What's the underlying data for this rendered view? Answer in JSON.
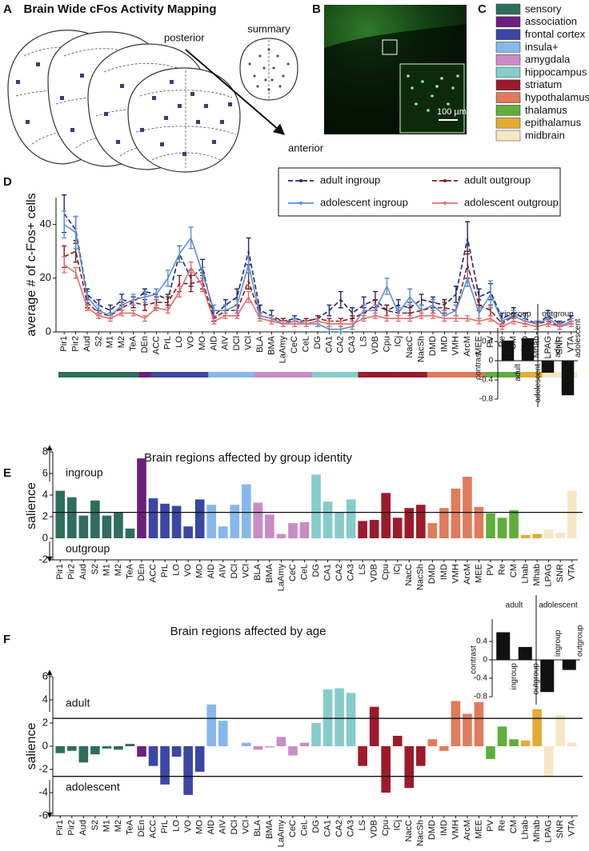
{
  "figure": {
    "panel_labels": [
      "A",
      "B",
      "C",
      "D",
      "E",
      "F"
    ],
    "title": "Brain Wide cFos Activity Mapping",
    "posterior": "posterior",
    "anterior": "anterior",
    "summary": "summary",
    "scale_bar": "100 µm",
    "legend": [
      {
        "name": "sensory",
        "color": "#2f6e5c"
      },
      {
        "name": "association",
        "color": "#6b1f7c"
      },
      {
        "name": "frontal cortex",
        "color": "#3b47a3"
      },
      {
        "name": "insula+",
        "color": "#86b8ec"
      },
      {
        "name": "amygdala",
        "color": "#c98cc6"
      },
      {
        "name": "hippocampus",
        "color": "#86cccb"
      },
      {
        "name": "striatum",
        "color": "#9b1b2b"
      },
      {
        "name": "hypothalamus",
        "color": "#e07b5c"
      },
      {
        "name": "thalamus",
        "color": "#5fae3c"
      },
      {
        "name": "epithalamus",
        "color": "#e3ac36"
      },
      {
        "name": "midbrain",
        "color": "#f6e7c4"
      }
    ]
  },
  "chart_data": [
    {
      "type": "line",
      "ylabel": "average # of c-Fos+ cells",
      "categories": [
        "Pir1",
        "Pir2",
        "Aud",
        "S2",
        "M1",
        "M2",
        "TeA",
        "DEn",
        "ACC",
        "PrL",
        "LO",
        "VO",
        "MO",
        "AID",
        "AIV",
        "DCl",
        "VCl",
        "BLA",
        "BMA",
        "LaAmy",
        "CeC",
        "CeL",
        "DG",
        "CA1",
        "CA2",
        "CA3",
        "LS",
        "VDB",
        "Cpu",
        "ICj",
        "NacC",
        "NacSh",
        "DMD",
        "IMD",
        "VMH",
        "ArcM",
        "MEE",
        "PV",
        "Re",
        "CM",
        "Lhab",
        "Mhab",
        "LPAG",
        "SNR",
        "VTA"
      ],
      "ylim": [
        0,
        50
      ],
      "yticks": [
        0,
        20,
        40
      ],
      "series": [
        {
          "name": "adult ingroup",
          "color": "#1f2a6e",
          "dashed": true,
          "values": [
            44,
            38,
            14,
            10,
            8,
            12,
            11,
            15,
            14,
            12,
            29,
            20,
            24,
            6,
            10,
            13,
            30,
            8,
            6,
            4,
            5,
            4,
            5,
            8,
            12,
            7,
            10,
            12,
            8,
            10,
            9,
            12,
            11,
            10,
            14,
            35,
            13,
            15,
            5,
            7,
            5,
            3,
            6,
            3,
            5
          ],
          "errors": [
            7,
            5,
            2,
            2,
            2,
            2,
            2,
            1,
            2,
            2,
            3,
            3,
            3,
            2,
            2,
            3,
            5,
            2,
            2,
            1,
            1,
            1,
            1,
            2,
            3,
            2,
            3,
            3,
            2,
            2,
            2,
            2,
            2,
            2,
            3,
            6,
            3,
            3,
            2,
            2,
            2,
            1,
            2,
            1,
            1
          ]
        },
        {
          "name": "adult outgroup",
          "color": "#8b1a1a",
          "dashed": true,
          "values": [
            28,
            30,
            11,
            7,
            6,
            9,
            11,
            10,
            11,
            11,
            18,
            18,
            19,
            5,
            8,
            8,
            19,
            6,
            5,
            4,
            4,
            4,
            5,
            4,
            4,
            5,
            7,
            10,
            8,
            7,
            7,
            8,
            9,
            9,
            8,
            25,
            10,
            8,
            3,
            6,
            4,
            3,
            4,
            2,
            4
          ],
          "errors": [
            4,
            4,
            2,
            1,
            1,
            2,
            2,
            2,
            2,
            2,
            3,
            3,
            3,
            1,
            2,
            2,
            3,
            1,
            1,
            1,
            1,
            1,
            1,
            1,
            1,
            1,
            2,
            2,
            2,
            2,
            2,
            2,
            2,
            2,
            2,
            5,
            2,
            2,
            1,
            1,
            1,
            1,
            1,
            1,
            1
          ]
        },
        {
          "name": "adolescent ingroup",
          "color": "#5b8fd6",
          "dashed": false,
          "values": [
            40,
            37,
            13,
            8,
            6,
            10,
            12,
            13,
            14,
            20,
            29,
            35,
            22,
            8,
            8,
            10,
            25,
            6,
            5,
            3,
            4,
            3,
            3,
            1,
            1,
            2,
            8,
            8,
            17,
            7,
            13,
            8,
            10,
            6,
            8,
            20,
            7,
            14,
            4,
            6,
            4,
            3,
            5,
            2,
            4
          ],
          "errors": [
            5,
            6,
            2,
            2,
            1,
            2,
            2,
            2,
            2,
            3,
            3,
            4,
            2,
            2,
            2,
            2,
            3,
            1,
            1,
            1,
            1,
            1,
            1,
            1,
            1,
            1,
            2,
            2,
            3,
            2,
            3,
            2,
            2,
            2,
            2,
            3,
            2,
            5,
            1,
            2,
            1,
            1,
            2,
            1,
            1
          ]
        },
        {
          "name": "adolescent outgroup",
          "color": "#e07070",
          "dashed": false,
          "values": [
            25,
            22,
            9,
            6,
            5,
            7,
            7,
            5,
            9,
            8,
            15,
            24,
            17,
            4,
            6,
            6,
            13,
            5,
            4,
            3,
            3,
            3,
            4,
            3,
            3,
            3,
            5,
            6,
            5,
            5,
            5,
            6,
            6,
            5,
            5,
            5,
            4,
            5,
            2,
            4,
            3,
            2,
            3,
            2,
            3
          ],
          "errors": [
            3,
            2,
            1,
            1,
            1,
            1,
            1,
            1,
            1,
            1,
            2,
            2,
            2,
            1,
            1,
            1,
            2,
            1,
            1,
            1,
            1,
            1,
            1,
            1,
            1,
            1,
            1,
            1,
            1,
            1,
            1,
            1,
            1,
            1,
            1,
            1,
            1,
            1,
            1,
            1,
            1,
            1,
            1,
            1,
            1
          ]
        }
      ],
      "strip_colors": [
        "#2f6e5c",
        "#2f6e5c",
        "#2f6e5c",
        "#2f6e5c",
        "#2f6e5c",
        "#2f6e5c",
        "#2f6e5c",
        "#6b1f7c",
        "#3b47a3",
        "#3b47a3",
        "#3b47a3",
        "#3b47a3",
        "#3b47a3",
        "#86b8ec",
        "#86b8ec",
        "#86b8ec",
        "#86b8ec",
        "#c98cc6",
        "#c98cc6",
        "#c98cc6",
        "#c98cc6",
        "#c98cc6",
        "#86cccb",
        "#86cccb",
        "#86cccb",
        "#86cccb",
        "#9b1b2b",
        "#9b1b2b",
        "#9b1b2b",
        "#9b1b2b",
        "#9b1b2b",
        "#9b1b2b",
        "#e07b5c",
        "#e07b5c",
        "#e07b5c",
        "#e07b5c",
        "#e07b5c",
        "#5fae3c",
        "#5fae3c",
        "#5fae3c",
        "#e3ac36",
        "#e3ac36",
        "#f6e7c4",
        "#f6e7c4",
        "#f6e7c4"
      ]
    },
    {
      "type": "bar",
      "title": "Brain regions affected by group identity",
      "ylabel": "salience",
      "annotations": [
        "ingroup",
        "outgroup"
      ],
      "categories": [
        "Pir1",
        "Pir2",
        "Aud",
        "S2",
        "M1",
        "M2",
        "TeA",
        "DEn",
        "ACC",
        "PrL",
        "LO",
        "VO",
        "MO",
        "AID",
        "AIV",
        "DCl",
        "VCl",
        "BLA",
        "BMA",
        "LaAmy",
        "CeC",
        "CeL",
        "DG",
        "CA1",
        "CA2",
        "CA3",
        "LS",
        "VDB",
        "Cpu",
        "ICj",
        "NacC",
        "NacSh",
        "DMD",
        "IMD",
        "VMH",
        "ArcM",
        "MEE",
        "PV",
        "Re",
        "CM",
        "Lhab",
        "Mhab",
        "LPAG",
        "SNR",
        "VTA"
      ],
      "values": [
        4.4,
        3.8,
        2.1,
        3.5,
        2.1,
        2.4,
        0.9,
        7.4,
        3.7,
        3.2,
        3.0,
        1.1,
        3.6,
        3.1,
        1.1,
        3.1,
        5.0,
        3.3,
        2.2,
        0.4,
        1.4,
        1.5,
        5.9,
        3.4,
        2.4,
        3.6,
        1.6,
        1.7,
        4.2,
        1.9,
        2.8,
        3.1,
        1.4,
        2.8,
        4.6,
        5.7,
        2.9,
        2.3,
        1.9,
        2.6,
        0.3,
        0.4,
        0.8,
        0.5,
        4.4
      ],
      "colors": [
        "#2f6e5c",
        "#2f6e5c",
        "#2f6e5c",
        "#2f6e5c",
        "#2f6e5c",
        "#2f6e5c",
        "#2f6e5c",
        "#6b1f7c",
        "#3b47a3",
        "#3b47a3",
        "#3b47a3",
        "#3b47a3",
        "#3b47a3",
        "#86b8ec",
        "#86b8ec",
        "#86b8ec",
        "#86b8ec",
        "#c98cc6",
        "#c98cc6",
        "#c98cc6",
        "#c98cc6",
        "#c98cc6",
        "#86cccb",
        "#86cccb",
        "#86cccb",
        "#86cccb",
        "#9b1b2b",
        "#9b1b2b",
        "#9b1b2b",
        "#9b1b2b",
        "#9b1b2b",
        "#9b1b2b",
        "#e07b5c",
        "#e07b5c",
        "#e07b5c",
        "#e07b5c",
        "#e07b5c",
        "#5fae3c",
        "#5fae3c",
        "#5fae3c",
        "#e3ac36",
        "#e3ac36",
        "#f6e7c4",
        "#f6e7c4",
        "#f6e7c4"
      ],
      "ylim": [
        -2,
        8
      ],
      "yticks": [
        -2,
        0,
        2,
        4,
        6,
        8
      ],
      "reference_lines": [
        2.4
      ]
    },
    {
      "type": "bar",
      "ylabel": "contrast",
      "groups": [
        "ingroup",
        "outgroup"
      ],
      "categories": [
        "adult",
        "adolescent",
        "adult",
        "adolescent"
      ],
      "values": [
        0.42,
        0.47,
        -0.25,
        -0.72
      ],
      "color": "#111111",
      "ylim": [
        -0.8,
        0.6
      ],
      "yticks": [
        0.4,
        0,
        -0.4,
        -0.8
      ]
    },
    {
      "type": "bar",
      "title": "Brain regions affected by age",
      "ylabel": "salience",
      "annotations": [
        "adult",
        "adolescent"
      ],
      "categories": [
        "Pir1",
        "Pir2",
        "Aud",
        "S2",
        "M1",
        "M2",
        "TeA",
        "DEn",
        "ACC",
        "PrL",
        "LO",
        "VO",
        "MO",
        "AID",
        "AIV",
        "DCl",
        "VCl",
        "BLA",
        "BMA",
        "LaAmy",
        "CeC",
        "CeL",
        "DG",
        "CA1",
        "CA2",
        "CA3",
        "LS",
        "VDB",
        "Cpu",
        "ICj",
        "NacC",
        "NacSh",
        "DMD",
        "IMD",
        "VMH",
        "ArcM",
        "MEE",
        "PV",
        "Re",
        "CM",
        "Lhab",
        "Mhab",
        "LPAG",
        "SNR",
        "VTA"
      ],
      "values": [
        -0.6,
        -0.4,
        -1.4,
        -0.7,
        -0.2,
        -0.3,
        0.2,
        -0.9,
        -1.7,
        -3.3,
        -0.9,
        -4.2,
        -2.2,
        3.6,
        2.2,
        0,
        0.3,
        -0.3,
        -0.1,
        0.8,
        -0.8,
        0.3,
        2.0,
        4.9,
        5.0,
        4.6,
        -1.7,
        3.4,
        -4.0,
        0.9,
        -3.6,
        -1.7,
        0.6,
        -0.4,
        3.9,
        2.8,
        3.8,
        -1.1,
        1.7,
        0.6,
        0.5,
        3.2,
        -2.6,
        2.7,
        0.3
      ],
      "colors": [
        "#2f6e5c",
        "#2f6e5c",
        "#2f6e5c",
        "#2f6e5c",
        "#2f6e5c",
        "#2f6e5c",
        "#2f6e5c",
        "#6b1f7c",
        "#3b47a3",
        "#3b47a3",
        "#3b47a3",
        "#3b47a3",
        "#3b47a3",
        "#86b8ec",
        "#86b8ec",
        "#86b8ec",
        "#86b8ec",
        "#c98cc6",
        "#c98cc6",
        "#c98cc6",
        "#c98cc6",
        "#c98cc6",
        "#86cccb",
        "#86cccb",
        "#86cccb",
        "#86cccb",
        "#9b1b2b",
        "#9b1b2b",
        "#9b1b2b",
        "#9b1b2b",
        "#9b1b2b",
        "#9b1b2b",
        "#e07b5c",
        "#e07b5c",
        "#e07b5c",
        "#e07b5c",
        "#e07b5c",
        "#5fae3c",
        "#5fae3c",
        "#5fae3c",
        "#e3ac36",
        "#e3ac36",
        "#f6e7c4",
        "#f6e7c4",
        "#f6e7c4"
      ],
      "ylim": [
        -6,
        6
      ],
      "yticks": [
        -6,
        -4,
        -2,
        0,
        2,
        4,
        6
      ],
      "reference_lines": [
        2.4,
        -2.6
      ]
    },
    {
      "type": "bar",
      "ylabel": "contrast",
      "groups": [
        "adult",
        "adolescent"
      ],
      "categories": [
        "ingroup",
        "outgroup",
        "ingroup",
        "outgroup"
      ],
      "values": [
        0.6,
        0.28,
        -0.7,
        -0.22
      ],
      "color": "#111111",
      "ylim": [
        -0.8,
        0.8
      ],
      "yticks": [
        0.4,
        0,
        -0.4,
        -0.8
      ]
    }
  ]
}
